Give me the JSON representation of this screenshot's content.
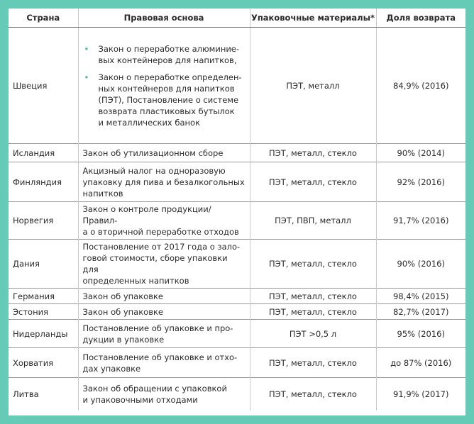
{
  "table": {
    "header": [
      "Страна",
      "Правовая основа",
      "Упаковочные материалы*",
      "Доля возврата"
    ],
    "rows": [
      {
        "country": "Швеция",
        "bulleted": true,
        "law": [
          [
            "Закон о переработке алюминие-",
            "вых контейнеров для напитков,"
          ],
          [
            "Закон о переработке определен-",
            "ных контейнеров для напитков",
            "(ПЭТ), Постановление о системе",
            "возврата пластиковых бутылок",
            "и металлических банок"
          ]
        ],
        "materials": "ПЭТ, металл",
        "rate": "84,9% (2016)"
      },
      {
        "country": "Исландия",
        "bulleted": false,
        "law": [
          [
            "Закон об утилизационном сборе"
          ]
        ],
        "materials": "ПЭТ, металл, стекло",
        "rate": "90% (2014)"
      },
      {
        "country": "Финляндия",
        "bulleted": false,
        "law": [
          [
            "Акцизный налог на одноразовую",
            "упаковку для пива и безалкогольных",
            "напитков"
          ]
        ],
        "materials": "ПЭТ, металл, стекло",
        "rate": "92% (2016)"
      },
      {
        "country": "Норвегия",
        "bulleted": false,
        "law": [
          [
            "Закон о контроле продукции/Правил-",
            "а о вторичной переработке отходов"
          ]
        ],
        "materials": "ПЭТ, ПВП, металл",
        "rate": "91,7% (2016)"
      },
      {
        "country": "Дания",
        "bulleted": false,
        "law": [
          [
            "Постановление от 2017 года о зало-",
            "говой стоимости, сборе упаковки для",
            "определенных напитков"
          ]
        ],
        "materials": "ПЭТ, металл, стекло",
        "rate": "90% (2016)"
      },
      {
        "country": "Германия",
        "bulleted": false,
        "law": [
          [
            "Закон об упаковке"
          ]
        ],
        "materials": "ПЭТ, металл, стекло",
        "rate": "98,4% (2015)"
      },
      {
        "country": "Эстония",
        "bulleted": false,
        "law": [
          [
            "Закон об упаковке"
          ]
        ],
        "materials": "ПЭТ, металл, стекло",
        "rate": "82,7% (2017)"
      },
      {
        "country": "Нидерланды",
        "bulleted": false,
        "law": [
          [
            "Постановление об упаковке и про-",
            "дукции в упаковке"
          ]
        ],
        "materials": "ПЭТ >0,5 л",
        "rate": "95% (2016)"
      },
      {
        "country": "Хорватия",
        "bulleted": false,
        "law": [
          [
            "Постановление об упаковке и отхо-",
            "дах упаковке"
          ]
        ],
        "materials": "ПЭТ, металл, стекло",
        "rate": "до 87% (2016)"
      },
      {
        "country": "Литва",
        "bulleted": false,
        "law": [
          [
            "Закон об обращении с упаковкой",
            "и упаковочными отходами"
          ]
        ],
        "materials": "ПЭТ, металл, стекло",
        "rate": "91,9% (2017)"
      }
    ]
  }
}
